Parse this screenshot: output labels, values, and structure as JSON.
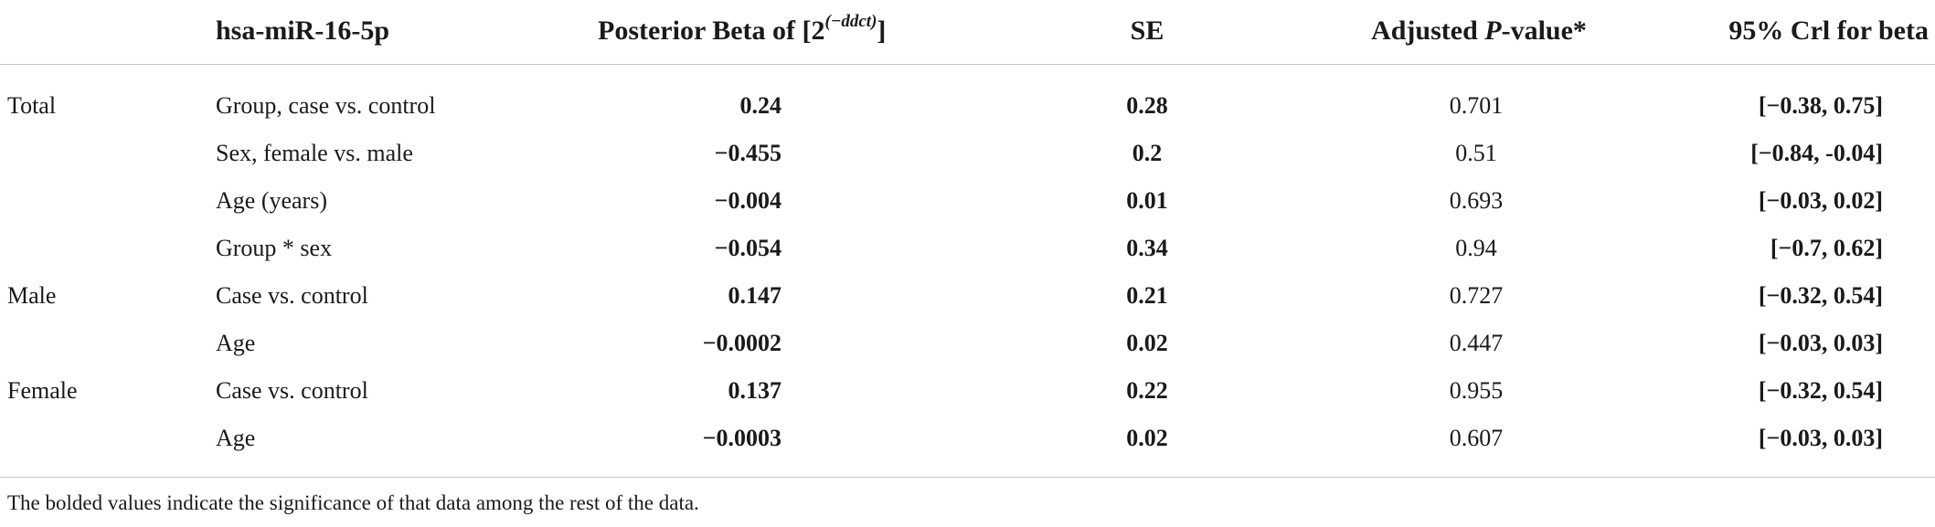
{
  "header": {
    "gene": "hsa-miR-16-5p",
    "beta_prefix": "Posterior Beta of [2",
    "beta_exponent": "(−ddct)",
    "beta_suffix": "]",
    "se": "SE",
    "p_prefix": "Adjusted ",
    "p_italic": "P",
    "p_suffix": "-value*",
    "ci": "95% Crl for beta"
  },
  "rows": [
    {
      "section": "Total",
      "variable": "Group, case vs. control",
      "beta": "0.24",
      "se": "0.28",
      "p": "0.701",
      "ci": "[−0.38, 0.75]"
    },
    {
      "section": "",
      "variable": "Sex, female vs. male",
      "beta": "−0.455",
      "se": "0.2",
      "p": "0.51",
      "ci": "[−0.84, -0.04]"
    },
    {
      "section": "",
      "variable": "Age (years)",
      "beta": "−0.004",
      "se": "0.01",
      "p": "0.693",
      "ci": "[−0.03, 0.02]"
    },
    {
      "section": "",
      "variable": "Group * sex",
      "beta": "−0.054",
      "se": "0.34",
      "p": "0.94",
      "ci": "[−0.7, 0.62]"
    },
    {
      "section": "Male",
      "variable": "Case vs. control",
      "beta": "0.147",
      "se": "0.21",
      "p": "0.727",
      "ci": "[−0.32, 0.54]"
    },
    {
      "section": "",
      "variable": "Age",
      "beta": "−0.0002",
      "se": "0.02",
      "p": "0.447",
      "ci": "[−0.03, 0.03]"
    },
    {
      "section": "Female",
      "variable": "Case vs. control",
      "beta": "0.137",
      "se": "0.22",
      "p": "0.955",
      "ci": "[−0.32, 0.54]"
    },
    {
      "section": "",
      "variable": "Age",
      "beta": "−0.0003",
      "se": "0.02",
      "p": "0.607",
      "ci": "[−0.03, 0.03]"
    }
  ],
  "footnote": "The bolded values indicate the significance of that data among the rest of the data."
}
